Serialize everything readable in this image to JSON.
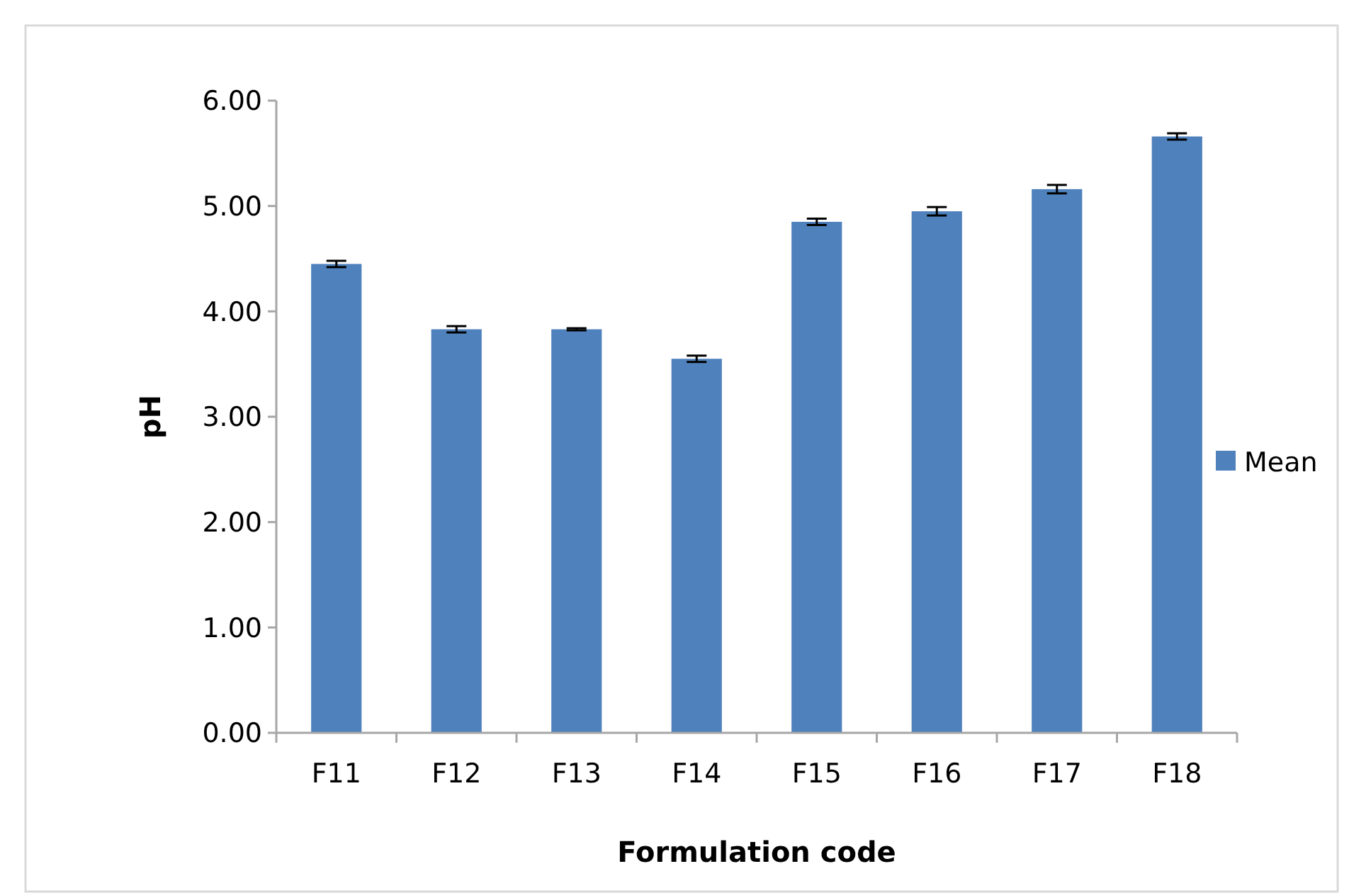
{
  "chart_data": {
    "type": "bar",
    "xlabel": "Formulation code",
    "ylabel": "pH",
    "categories": [
      "F11",
      "F12",
      "F13",
      "F14",
      "F15",
      "F16",
      "F17",
      "F18"
    ],
    "series": [
      {
        "name": "Mean",
        "color": "#4f81bd",
        "values": [
          4.45,
          3.83,
          3.83,
          3.55,
          4.85,
          4.95,
          5.16,
          5.66
        ],
        "errors": [
          0.03,
          0.03,
          0.01,
          0.03,
          0.03,
          0.04,
          0.04,
          0.03
        ]
      }
    ],
    "ylim": [
      0,
      6
    ],
    "yticks": [
      {
        "value": 0,
        "label": "0.00"
      },
      {
        "value": 1,
        "label": "1.00"
      },
      {
        "value": 2,
        "label": "2.00"
      },
      {
        "value": 3,
        "label": "3.00"
      },
      {
        "value": 4,
        "label": "4.00"
      },
      {
        "value": 5,
        "label": "5.00"
      },
      {
        "value": 6,
        "label": "6.00"
      }
    ],
    "grid": false,
    "legend": "right"
  }
}
